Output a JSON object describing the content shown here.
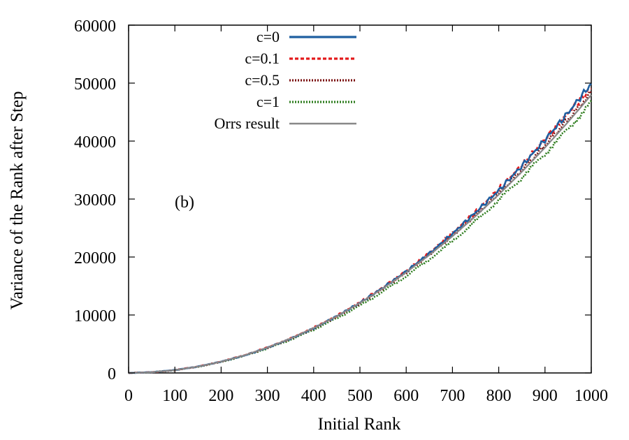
{
  "chart_data": {
    "type": "line",
    "xlabel": "Initial Rank",
    "ylabel": "Variance of the Rank after Step",
    "annotation": "(b)",
    "xlim": [
      0,
      1000
    ],
    "ylim": [
      0,
      60000
    ],
    "xticks": [
      0,
      100,
      200,
      300,
      400,
      500,
      600,
      700,
      800,
      900,
      1000
    ],
    "yticks": [
      0,
      10000,
      20000,
      30000,
      40000,
      50000,
      60000
    ],
    "x": [
      0,
      50,
      100,
      150,
      200,
      250,
      300,
      350,
      400,
      450,
      500,
      550,
      600,
      650,
      700,
      750,
      800,
      850,
      900,
      950,
      1000
    ],
    "grid": false,
    "legend_position": "top-center",
    "series": [
      {
        "name": "c=0",
        "color": "#1f5fa0",
        "style": "solid",
        "values": [
          0,
          130,
          500,
          1100,
          1950,
          3000,
          4350,
          5900,
          7700,
          9800,
          12100,
          14700,
          17500,
          20600,
          24000,
          27700,
          31500,
          35700,
          40200,
          44900,
          49900
        ]
      },
      {
        "name": "c=0.1",
        "color": "#e31a1c",
        "style": "dashed",
        "values": [
          0,
          125,
          495,
          1110,
          1960,
          3050,
          4400,
          5950,
          7800,
          9850,
          12200,
          14800,
          17600,
          20700,
          24100,
          27750,
          31700,
          35900,
          40300,
          44800,
          49200
        ]
      },
      {
        "name": "c=0.5",
        "color": "#7a1010",
        "style": "dotted",
        "values": [
          0,
          120,
          490,
          1090,
          1940,
          3020,
          4330,
          5880,
          7680,
          9720,
          12000,
          14550,
          17300,
          20400,
          23650,
          27200,
          31000,
          35000,
          39300,
          43800,
          48400
        ]
      },
      {
        "name": "c=1",
        "color": "#2e7d1e",
        "style": "dotted",
        "values": [
          0,
          115,
          475,
          1060,
          1880,
          2940,
          4220,
          5720,
          7460,
          9420,
          11620,
          14050,
          16700,
          19600,
          22750,
          26150,
          29800,
          33700,
          37800,
          42100,
          46700
        ]
      },
      {
        "name": "Orrs result",
        "color": "#888888",
        "style": "solid",
        "values": [
          0,
          122,
          488,
          1096,
          1946,
          3036,
          4366,
          5936,
          7744,
          9790,
          12074,
          14596,
          17354,
          20350,
          23584,
          27054,
          30762,
          34706,
          38888,
          43306,
          47962
        ]
      }
    ]
  }
}
